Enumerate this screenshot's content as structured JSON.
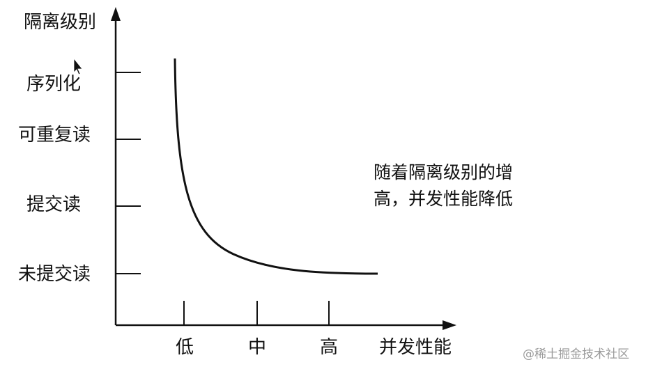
{
  "chart_data": {
    "type": "line",
    "ylabel": "隔离级别",
    "xlabel": "并发性能",
    "y_categories": [
      "未提交读",
      "提交读",
      "可重复读",
      "序列化"
    ],
    "x_categories": [
      "低",
      "中",
      "高"
    ],
    "annotation": {
      "line1": "随着隔离级别的增",
      "line2": "高，并发性能降低"
    },
    "curve": "hyperbolic decreasing: high isolation at low concurrency, flattening toward 未提交读 at high concurrency"
  },
  "watermark": "@稀土掘金技术社区"
}
